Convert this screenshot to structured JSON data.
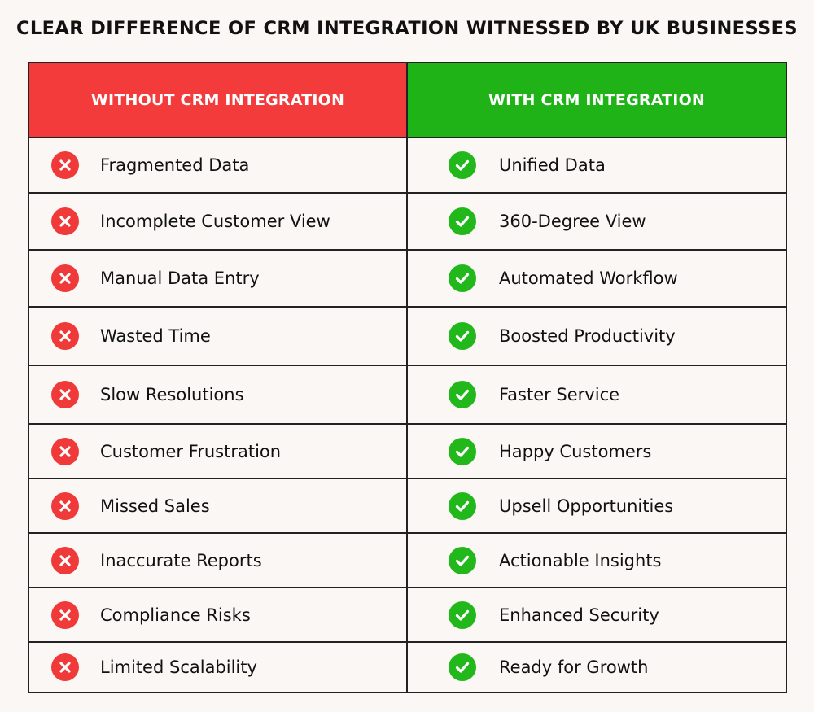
{
  "title": "CLEAR DIFFERENCE OF CRM INTEGRATION WITNESSED BY UK BUSINESSES",
  "colors": {
    "without": "#f33b3b",
    "with": "#20b318",
    "x_icon": "#f03a3a",
    "check_icon": "#22b81c"
  },
  "icons": {
    "without": "x-circle-icon",
    "with": "check-circle-icon"
  },
  "headers": {
    "without": "WITHOUT CRM INTEGRATION",
    "with": "WITH CRM INTEGRATION"
  },
  "rows": [
    {
      "without": "Fragmented Data",
      "with": "Unified Data"
    },
    {
      "without": "Incomplete Customer View",
      "with": "360-Degree View"
    },
    {
      "without": "Manual Data Entry",
      "with": "Automated Workflow"
    },
    {
      "without": "Wasted Time",
      "with": "Boosted Productivity"
    },
    {
      "without": "Slow Resolutions",
      "with": "Faster Service"
    },
    {
      "without": "Customer Frustration",
      "with": "Happy Customers"
    },
    {
      "without": "Missed Sales",
      "with": "Upsell Opportunities"
    },
    {
      "without": "Inaccurate Reports",
      "with": "Actionable Insights"
    },
    {
      "without": "Compliance Risks",
      "with": "Enhanced Security"
    },
    {
      "without": "Limited Scalability",
      "with": "Ready for Growth"
    }
  ]
}
